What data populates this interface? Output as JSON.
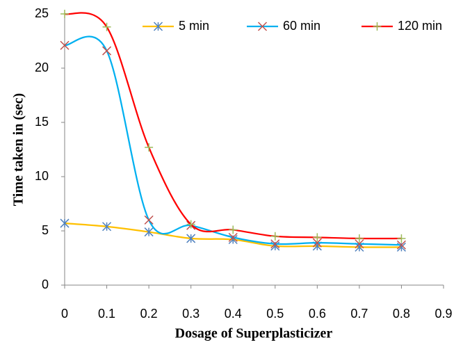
{
  "chart_data": {
    "type": "line",
    "x_label": "Dosage of  Superplasticizer",
    "y_label": "Time taken in (sec)",
    "x": [
      0,
      0.1,
      0.2,
      0.3,
      0.4,
      0.5,
      0.6,
      0.7,
      0.8
    ],
    "series": [
      {
        "name": "5 min",
        "color": "#FFC000",
        "marker": "star",
        "marker_color": "#4F81BD",
        "values": [
          5.7,
          5.4,
          4.9,
          4.3,
          4.2,
          3.6,
          3.6,
          3.5,
          3.5
        ]
      },
      {
        "name": "60 min",
        "color": "#00B0F0",
        "marker": "x",
        "marker_color": "#C0504D",
        "values": [
          22.1,
          21.6,
          6.0,
          5.5,
          4.4,
          3.8,
          3.9,
          3.8,
          3.7
        ]
      },
      {
        "name": "120 min",
        "color": "#FF0000",
        "marker": "plus",
        "marker_color": "#9BBB59",
        "values": [
          25.0,
          23.8,
          12.7,
          5.6,
          5.1,
          4.5,
          4.4,
          4.3,
          4.3
        ]
      }
    ],
    "xlim": [
      0,
      0.9
    ],
    "xticks": [
      0,
      0.1,
      0.2,
      0.3,
      0.4,
      0.5,
      0.6,
      0.7,
      0.8,
      0.9
    ],
    "ylim": [
      0,
      25
    ],
    "yticks": [
      0,
      5,
      10,
      15,
      20,
      25
    ],
    "grid": false,
    "legend": "top",
    "smooth": true
  }
}
